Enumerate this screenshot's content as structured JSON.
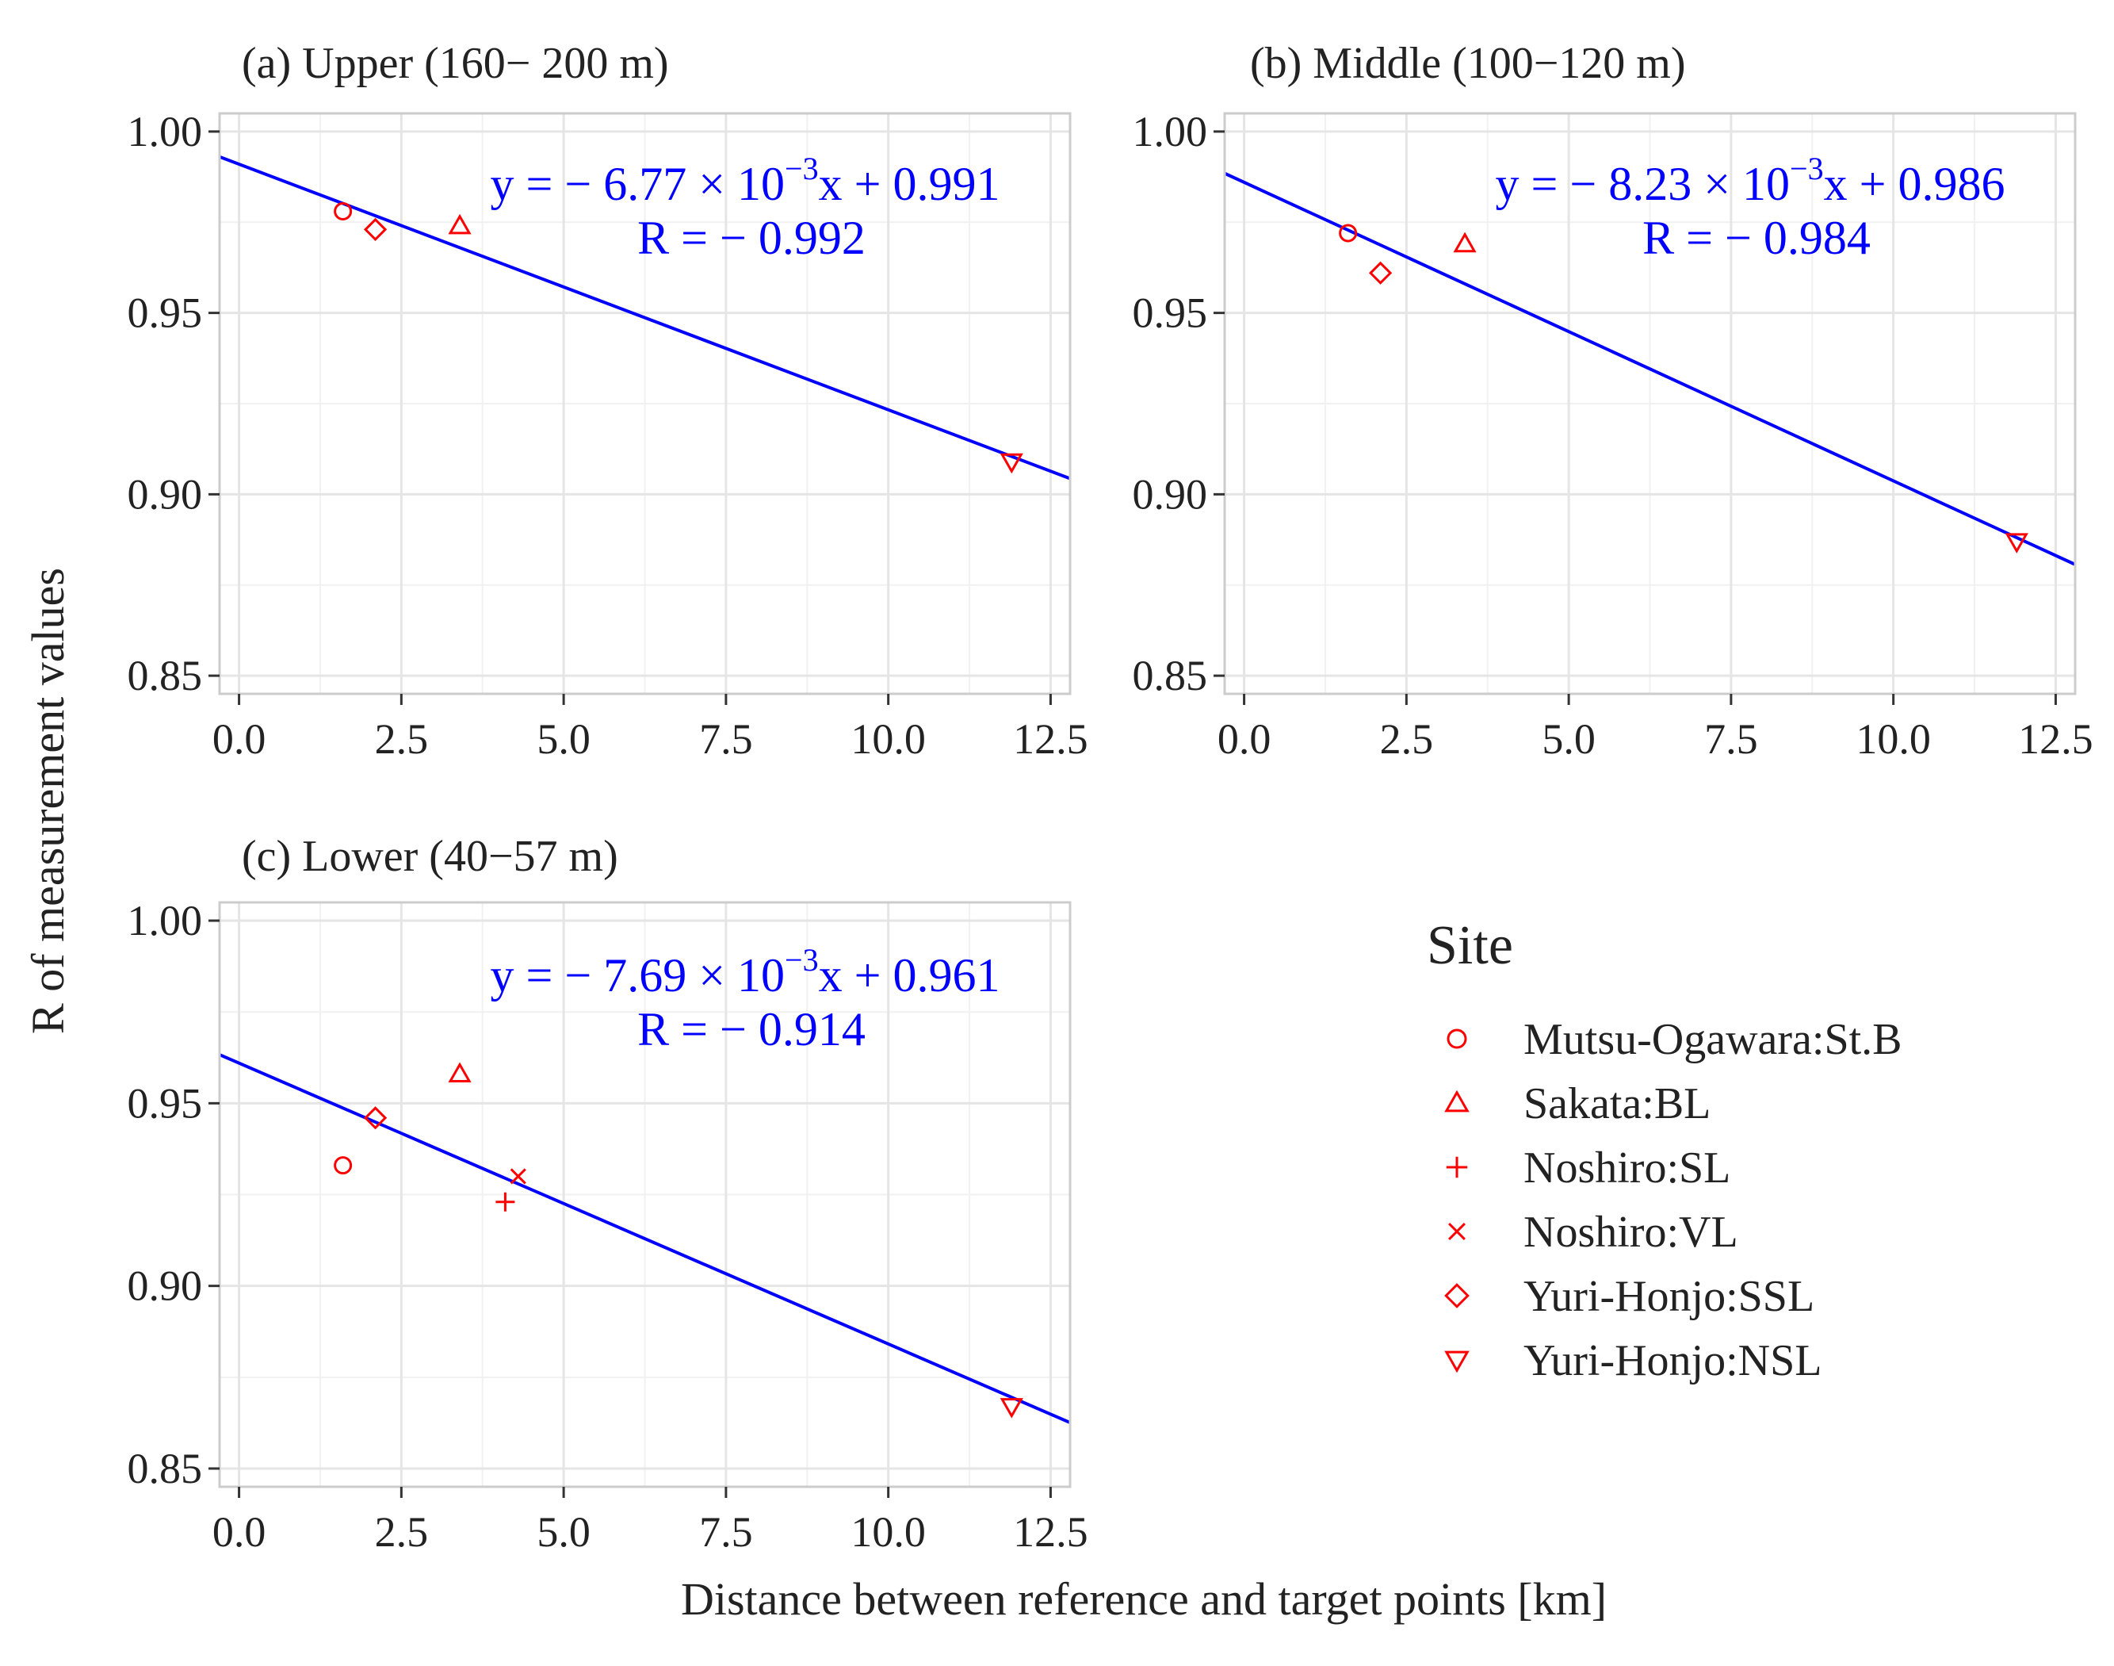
{
  "figure": {
    "ylabel": "R of measurement values",
    "xlabel": "Distance between reference and target points [km]",
    "colors": {
      "points": "#ff0000",
      "fit_line": "#0000ff",
      "grid": "#e5e5e5",
      "panel_border": "#cccccc",
      "axis_text": "#222222"
    }
  },
  "legend": {
    "title": "Site",
    "items": [
      {
        "label": "Mutsu-Ogawara:St.B",
        "shape": "circle"
      },
      {
        "label": "Sakata:BL",
        "shape": "triangle-up"
      },
      {
        "label": "Noshiro:SL",
        "shape": "plus"
      },
      {
        "label": "Noshiro:VL",
        "shape": "cross"
      },
      {
        "label": "Yuri-Honjo:SSL",
        "shape": "diamond"
      },
      {
        "label": "Yuri-Honjo:NSL",
        "shape": "triangle-down"
      }
    ]
  },
  "chart_data": [
    {
      "type": "scatter",
      "title": "(a) Upper (160− 200 m)",
      "xlim": [
        -0.3,
        12.8
      ],
      "ylim": [
        0.845,
        1.005
      ],
      "xticks": [
        0.0,
        2.5,
        5.0,
        7.5,
        10.0,
        12.5
      ],
      "xtick_labels": [
        "0.0",
        "2.5",
        "5.0",
        "7.5",
        "10.0",
        "12.5"
      ],
      "yticks": [
        0.85,
        0.9,
        0.95,
        1.0
      ],
      "ytick_labels": [
        "0.85",
        "0.90",
        "0.95",
        "1.00"
      ],
      "points": [
        {
          "site": "Mutsu-Ogawara:St.B",
          "shape": "circle",
          "x": 1.6,
          "y": 0.978
        },
        {
          "site": "Yuri-Honjo:SSL",
          "shape": "diamond",
          "x": 2.1,
          "y": 0.973
        },
        {
          "site": "Sakata:BL",
          "shape": "triangle-up",
          "x": 3.4,
          "y": 0.974
        },
        {
          "site": "Yuri-Honjo:NSL",
          "shape": "triangle-down",
          "x": 11.9,
          "y": 0.909
        }
      ],
      "fit": {
        "slope": -0.00677,
        "intercept": 0.991,
        "r": -0.992
      },
      "eq_text": {
        "prefix": "y = − 6.77 × 10",
        "exp": "−3",
        "suffix": "x + 0.991",
        "r": "R = − 0.992"
      }
    },
    {
      "type": "scatter",
      "title": "(b) Middle (100−120 m)",
      "xlim": [
        -0.3,
        12.8
      ],
      "ylim": [
        0.845,
        1.005
      ],
      "xticks": [
        0.0,
        2.5,
        5.0,
        7.5,
        10.0,
        12.5
      ],
      "xtick_labels": [
        "0.0",
        "2.5",
        "5.0",
        "7.5",
        "10.0",
        "12.5"
      ],
      "yticks": [
        0.85,
        0.9,
        0.95,
        1.0
      ],
      "ytick_labels": [
        "0.85",
        "0.90",
        "0.95",
        "1.00"
      ],
      "points": [
        {
          "site": "Mutsu-Ogawara:St.B",
          "shape": "circle",
          "x": 1.6,
          "y": 0.972
        },
        {
          "site": "Yuri-Honjo:SSL",
          "shape": "diamond",
          "x": 2.1,
          "y": 0.961
        },
        {
          "site": "Sakata:BL",
          "shape": "triangle-up",
          "x": 3.4,
          "y": 0.969
        },
        {
          "site": "Yuri-Honjo:NSL",
          "shape": "triangle-down",
          "x": 11.9,
          "y": 0.887
        }
      ],
      "fit": {
        "slope": -0.00823,
        "intercept": 0.986,
        "r": -0.984
      },
      "eq_text": {
        "prefix": "y = − 8.23 × 10",
        "exp": "−3",
        "suffix": "x + 0.986",
        "r": "R = − 0.984"
      }
    },
    {
      "type": "scatter",
      "title": "(c) Lower (40−57 m)",
      "xlim": [
        -0.3,
        12.8
      ],
      "ylim": [
        0.845,
        1.005
      ],
      "xticks": [
        0.0,
        2.5,
        5.0,
        7.5,
        10.0,
        12.5
      ],
      "xtick_labels": [
        "0.0",
        "2.5",
        "5.0",
        "7.5",
        "10.0",
        "12.5"
      ],
      "yticks": [
        0.85,
        0.9,
        0.95,
        1.0
      ],
      "ytick_labels": [
        "0.85",
        "0.90",
        "0.95",
        "1.00"
      ],
      "points": [
        {
          "site": "Mutsu-Ogawara:St.B",
          "shape": "circle",
          "x": 1.6,
          "y": 0.933
        },
        {
          "site": "Yuri-Honjo:SSL",
          "shape": "diamond",
          "x": 2.1,
          "y": 0.946
        },
        {
          "site": "Sakata:BL",
          "shape": "triangle-up",
          "x": 3.4,
          "y": 0.958
        },
        {
          "site": "Noshiro:SL",
          "shape": "plus",
          "x": 4.1,
          "y": 0.923
        },
        {
          "site": "Noshiro:VL",
          "shape": "cross",
          "x": 4.3,
          "y": 0.93
        },
        {
          "site": "Yuri-Honjo:NSL",
          "shape": "triangle-down",
          "x": 11.9,
          "y": 0.867
        }
      ],
      "fit": {
        "slope": -0.00769,
        "intercept": 0.961,
        "r": -0.914
      },
      "eq_text": {
        "prefix": "y = − 7.69 × 10",
        "exp": "−3",
        "suffix": "x + 0.961",
        "r": "R = − 0.914"
      }
    }
  ]
}
